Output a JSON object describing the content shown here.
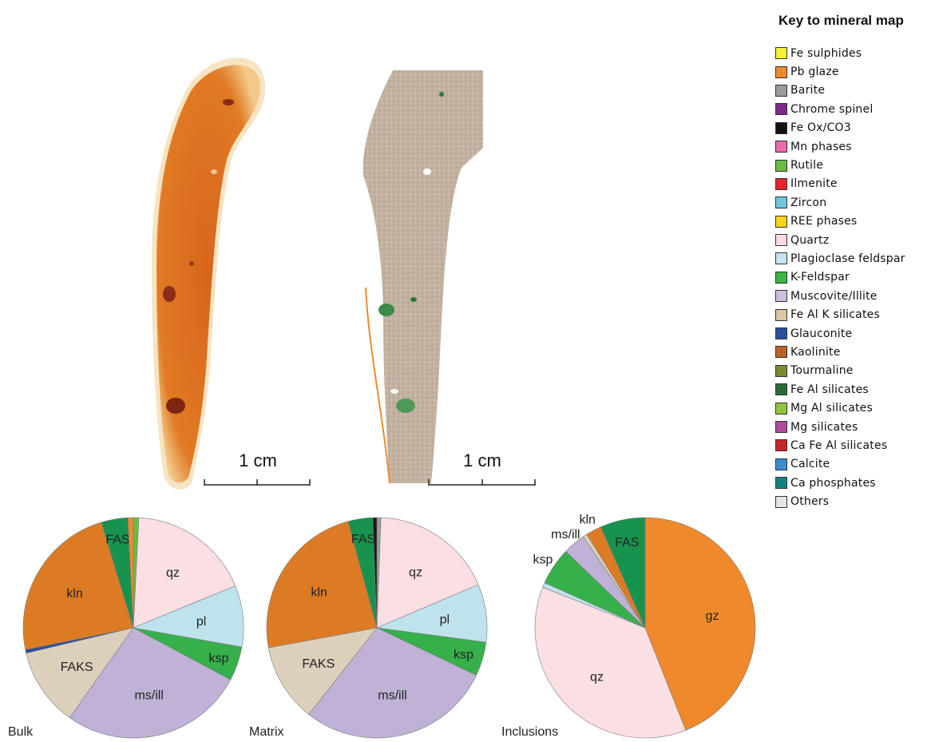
{
  "legend": {
    "title": "Key to mineral map",
    "items": [
      {
        "label": "Fe sulphides",
        "color": "#f5ef3a"
      },
      {
        "label": "Pb glaze",
        "color": "#ee8a2c"
      },
      {
        "label": "Barite",
        "color": "#9a9d9f"
      },
      {
        "label": "Chrome spinel",
        "color": "#7b2a8a"
      },
      {
        "label": "Fe Ox/CO3",
        "color": "#141414"
      },
      {
        "label": "Mn phases",
        "color": "#ec6aa8"
      },
      {
        "label": "Rutile",
        "color": "#6cbb45"
      },
      {
        "label": "Ilmenite",
        "color": "#e4232b"
      },
      {
        "label": "Zircon",
        "color": "#6cc7d9"
      },
      {
        "label": "REE phases",
        "color": "#f6d41c"
      },
      {
        "label": "Quartz",
        "color": "#fadadd"
      },
      {
        "label": "Plagioclase feldspar",
        "color": "#c4e4ee"
      },
      {
        "label": "K-Feldspar",
        "color": "#3cb54a"
      },
      {
        "label": "Muscovite/Illite",
        "color": "#cdbfdc"
      },
      {
        "label": "Fe Al K silicates",
        "color": "#d9c6a3"
      },
      {
        "label": "Glauconite",
        "color": "#2a4e9f"
      },
      {
        "label": "Kaolinite",
        "color": "#b8632a"
      },
      {
        "label": "Tourmaline",
        "color": "#7f8a2f"
      },
      {
        "label": "Fe Al silicates",
        "color": "#2d6a35"
      },
      {
        "label": "Mg Al silicates",
        "color": "#94c43e"
      },
      {
        "label": "Mg silicates",
        "color": "#b24a9b"
      },
      {
        "label": "Ca Fe Al silicates",
        "color": "#c4262b"
      },
      {
        "label": "Calcite",
        "color": "#3d8bcb"
      },
      {
        "label": "Ca phosphates",
        "color": "#13837f"
      },
      {
        "label": "Others",
        "color": "#e6e6e6"
      }
    ]
  },
  "images": {
    "photo_color": "#d8661c",
    "map_color": "#c4b3a3",
    "scale_label": "1 cm"
  },
  "chart_data": [
    {
      "type": "pie",
      "title": "Bulk",
      "start_angle_deg": 0,
      "direction": "clockwise",
      "slices": [
        {
          "label": "",
          "value": 0.8,
          "color": "#6cbb45"
        },
        {
          "label": "qz",
          "value": 18.0,
          "color": "#fadfe3"
        },
        {
          "label": "pl",
          "value": 9.0,
          "color": "#bfe3ec"
        },
        {
          "label": "ksp",
          "value": 5.0,
          "color": "#36b04a"
        },
        {
          "label": "ms/ill",
          "value": 27.0,
          "color": "#bfb2d6"
        },
        {
          "label": "FAKS",
          "value": 11.5,
          "color": "#dcd0bd"
        },
        {
          "label": "",
          "value": 0.5,
          "color": "#2a4e9f"
        },
        {
          "label": "kln",
          "value": 23.5,
          "color": "#dd7b25"
        },
        {
          "label": "FAS",
          "value": 3.9,
          "color": "#18934d"
        },
        {
          "label": "",
          "value": 0.8,
          "color": "#ee8a2c"
        }
      ]
    },
    {
      "type": "pie",
      "title": "Matrix",
      "start_angle_deg": 0,
      "direction": "clockwise",
      "slices": [
        {
          "label": "",
          "value": 0.6,
          "color": "#9a9d9f"
        },
        {
          "label": "qz",
          "value": 18.0,
          "color": "#fadfe3"
        },
        {
          "label": "pl",
          "value": 8.5,
          "color": "#bfe3ec"
        },
        {
          "label": "ksp",
          "value": 5.0,
          "color": "#36b04a"
        },
        {
          "label": "ms/ill",
          "value": 28.5,
          "color": "#bfb2d6"
        },
        {
          "label": "FAKS",
          "value": 11.5,
          "color": "#dcd0bd"
        },
        {
          "label": "kln",
          "value": 23.7,
          "color": "#dd7b25"
        },
        {
          "label": "FAS",
          "value": 3.6,
          "color": "#18934d"
        },
        {
          "label": "",
          "value": 0.6,
          "color": "#1a1a1a"
        }
      ]
    },
    {
      "type": "pie",
      "title": "Inclusions",
      "start_angle_deg": 0,
      "direction": "clockwise",
      "slices": [
        {
          "label": "gz",
          "value": 44.0,
          "color": "#ee8a2c"
        },
        {
          "label": "qz",
          "value": 37.0,
          "color": "#fadfe3"
        },
        {
          "label": "",
          "value": 0.7,
          "color": "#bfe3ec"
        },
        {
          "label": "ksp",
          "value": 5.5,
          "color": "#36b04a"
        },
        {
          "label": "ms/ill",
          "value": 3.3,
          "color": "#bfb2d6"
        },
        {
          "label": "",
          "value": 0.6,
          "color": "#dcd0bd"
        },
        {
          "label": "kln",
          "value": 2.3,
          "color": "#dd7b25"
        },
        {
          "label": "FAS",
          "value": 6.6,
          "color": "#18934d"
        }
      ]
    }
  ]
}
